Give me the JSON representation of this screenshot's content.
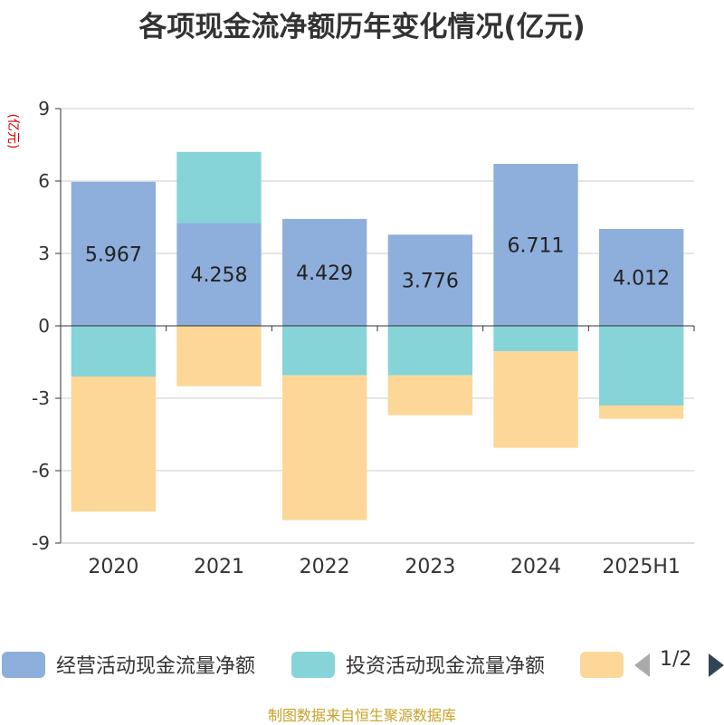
{
  "chart_data": {
    "type": "bar",
    "stacked": true,
    "title": "各项现金流净额历年变化情况(亿元)",
    "ylabel": "(亿元)",
    "xlabel": "",
    "categories": [
      "2020",
      "2021",
      "2022",
      "2023",
      "2024",
      "2025H1"
    ],
    "ylim": [
      -9,
      9
    ],
    "yticks": [
      -9,
      -6,
      -3,
      0,
      3,
      6,
      9
    ],
    "grid": true,
    "legend_position": "bottom",
    "series": [
      {
        "name": "经营活动现金流量净额",
        "color": "#8eaedb",
        "values": [
          5.967,
          4.258,
          4.429,
          3.776,
          6.711,
          4.012
        ],
        "labels": [
          "5.967",
          "4.258",
          "4.429",
          "3.776",
          "6.711",
          "4.012"
        ]
      },
      {
        "name": "投资活动现金流量净额",
        "color": "#86d4d8",
        "values": [
          -2.1,
          2.95,
          -2.05,
          -2.05,
          -1.05,
          -3.3
        ]
      },
      {
        "name": "",
        "color": "#fdd797",
        "values": [
          -5.6,
          -2.5,
          -6.0,
          -1.65,
          -4.0,
          -0.55
        ]
      }
    ]
  },
  "legend": {
    "page": "1/2"
  },
  "source": "制图数据来自恒生聚源数据库"
}
